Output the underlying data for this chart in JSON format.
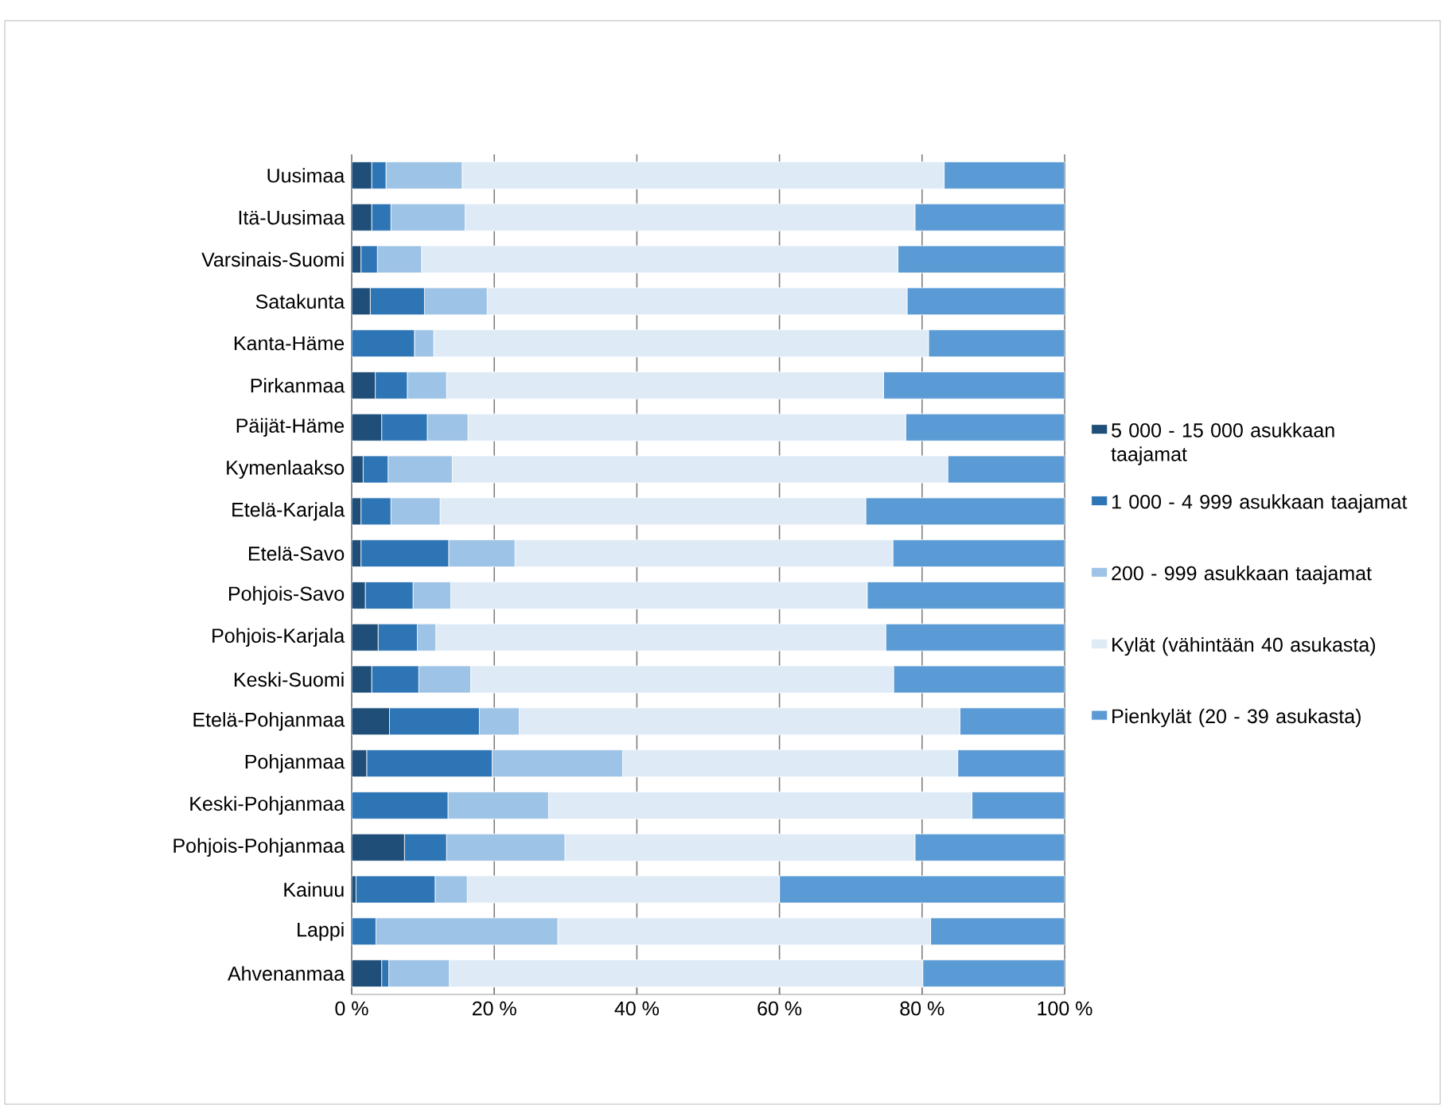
{
  "chart_data": {
    "type": "bar",
    "orientation": "horizontal",
    "stacked": true,
    "categories": [
      "Uusimaa",
      "Itä-Uusimaa",
      "Varsinais-Suomi",
      "Satakunta",
      "Kanta-Häme",
      "Pirkanmaa",
      "Päijät-Häme",
      "Kymenlaakso",
      "Etelä-Karjala",
      "Etelä-Savo",
      "Pohjois-Savo",
      "Pohjois-Karjala",
      "Keski-Suomi",
      "Etelä-Pohjanmaa",
      "Pohjanmaa",
      "Keski-Pohjanmaa",
      "Pohjois-Pohjanmaa",
      "Kainuu",
      "Lappi",
      "Ahvenanmaa"
    ],
    "series": [
      {
        "name": "5 000 - 15 000 asukkaan taajamat",
        "color": "#1f4e79",
        "values": [
          2.8,
          2.8,
          1.3,
          2.6,
          0,
          3.3,
          4.2,
          1.6,
          1.3,
          1.3,
          1.9,
          3.7,
          2.8,
          5.3,
          2.1,
          0,
          7.4,
          0.6,
          0,
          4.2
        ]
      },
      {
        "name": "1 000 - 4 999 asukkaan taajamat",
        "color": "#2e75b6",
        "values": [
          2.0,
          2.7,
          2.3,
          7.6,
          8.8,
          4.5,
          6.4,
          3.5,
          4.2,
          12.3,
          6.7,
          5.5,
          6.6,
          12.6,
          17.6,
          13.5,
          5.9,
          11.1,
          3.4,
          1.0
        ]
      },
      {
        "name": "200 - 999 asukkaan taajamat",
        "color": "#9dc3e6",
        "values": [
          10.7,
          10.4,
          6.2,
          8.8,
          2.7,
          5.5,
          5.7,
          9.0,
          6.9,
          9.3,
          5.3,
          2.6,
          7.3,
          5.6,
          18.3,
          14.1,
          16.6,
          4.5,
          25.5,
          8.5
        ]
      },
      {
        "name": "Kylät (vähintään 40 asukasta)",
        "color": "#deeaf6",
        "values": [
          67.6,
          63.1,
          66.8,
          58.9,
          69.4,
          61.3,
          61.4,
          69.5,
          59.7,
          53.0,
          58.4,
          63.1,
          59.3,
          61.8,
          47.0,
          59.4,
          49.1,
          43.8,
          52.3,
          66.4
        ]
      },
      {
        "name": "Pienkylät (20 - 39 asukasta)",
        "color": "#5b9bd5",
        "values": [
          16.9,
          21.0,
          23.4,
          22.1,
          19.1,
          25.4,
          22.3,
          16.4,
          27.9,
          24.1,
          27.7,
          25.1,
          24.0,
          14.7,
          15.0,
          13.0,
          21.0,
          40.0,
          18.8,
          19.9
        ]
      }
    ],
    "xlim": [
      0,
      100
    ],
    "xticks": [
      {
        "value": 0,
        "label": "0 %"
      },
      {
        "value": 20,
        "label": "20 %"
      },
      {
        "value": 40,
        "label": "40 %"
      },
      {
        "value": 60,
        "label": "60 %"
      },
      {
        "value": 80,
        "label": "80 %"
      },
      {
        "value": 100,
        "label": "100 %"
      }
    ],
    "grid": "x",
    "legend": "right"
  }
}
